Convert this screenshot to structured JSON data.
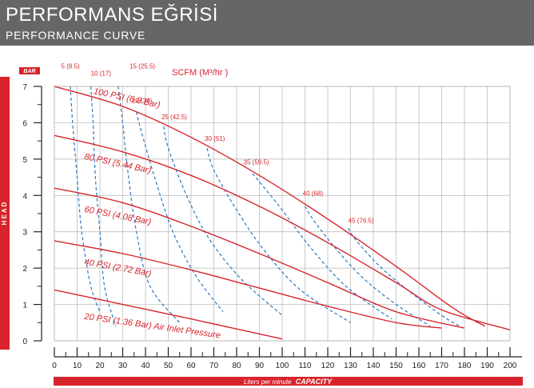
{
  "header": {
    "title": "PERFORMANS EĞRİSİ",
    "subtitle": "PERFORMANCE CURVE"
  },
  "colors": {
    "header_bg": "#666666",
    "accent_red": "#d7242c",
    "air_blue": "#2b78c2",
    "grid": "#b4b4b4"
  },
  "chart_data": {
    "type": "line",
    "y_unit_label": "BAR",
    "y_axis_label": "HEAD",
    "x_axis_label_prefix": "Liters per minute",
    "x_axis_label_bold": "CAPACITY",
    "xlim": [
      0,
      200
    ],
    "ylim": [
      0,
      7
    ],
    "x_ticks": [
      0,
      10,
      20,
      30,
      40,
      50,
      60,
      70,
      80,
      90,
      100,
      110,
      120,
      130,
      140,
      150,
      160,
      170,
      180,
      190,
      200
    ],
    "y_ticks": [
      0,
      1,
      2,
      3,
      4,
      5,
      6,
      7
    ],
    "grid": true,
    "air_pressure_curves": [
      {
        "label": "100 PSI (6.8 Bar)",
        "points": [
          [
            0,
            7.0
          ],
          [
            30,
            6.45
          ],
          [
            60,
            5.6
          ],
          [
            90,
            4.55
          ],
          [
            120,
            3.35
          ],
          [
            150,
            2.05
          ],
          [
            175,
            0.9
          ],
          [
            189,
            0.4
          ]
        ],
        "label_at": [
          17,
          6.8
        ],
        "label_rotate": 12
      },
      {
        "label": "80 PSI (5.44 Bar)",
        "points": [
          [
            0,
            5.65
          ],
          [
            30,
            5.2
          ],
          [
            60,
            4.55
          ],
          [
            90,
            3.7
          ],
          [
            120,
            2.7
          ],
          [
            150,
            1.6
          ],
          [
            170,
            0.85
          ],
          [
            200,
            0.3
          ]
        ],
        "label_at": [
          13,
          5.0
        ],
        "label_rotate": 12
      },
      {
        "label": "60 PSI (4.08 Bar)",
        "points": [
          [
            0,
            4.2
          ],
          [
            30,
            3.8
          ],
          [
            60,
            3.15
          ],
          [
            90,
            2.4
          ],
          [
            120,
            1.6
          ],
          [
            150,
            0.8
          ],
          [
            180,
            0.35
          ]
        ],
        "label_at": [
          13,
          3.55
        ],
        "label_rotate": 11
      },
      {
        "label": "40 PSI (2.72 Bar)",
        "points": [
          [
            0,
            2.75
          ],
          [
            30,
            2.4
          ],
          [
            60,
            1.95
          ],
          [
            90,
            1.45
          ],
          [
            120,
            0.95
          ],
          [
            150,
            0.5
          ],
          [
            170,
            0.35
          ]
        ],
        "label_at": [
          13,
          2.1
        ],
        "label_rotate": 10
      },
      {
        "label": "20 PSI (1.36 Bar) Air Inlet Pressure",
        "points": [
          [
            0,
            1.4
          ],
          [
            30,
            1.0
          ],
          [
            60,
            0.6
          ],
          [
            100,
            0.05
          ]
        ],
        "label_at": [
          13,
          0.6
        ],
        "label_rotate": 8
      }
    ],
    "scfm_label_title": "SCFM (M³/hr )",
    "scfm_curves": [
      {
        "label": "5 (8.5)",
        "points": [
          [
            7,
            7.0
          ],
          [
            8,
            6.0
          ],
          [
            10,
            4.5
          ],
          [
            12,
            3.0
          ],
          [
            16,
            1.5
          ],
          [
            20,
            0.8
          ]
        ],
        "label_at": [
          3,
          7.5
        ]
      },
      {
        "label": "10 (17)",
        "points": [
          [
            16,
            7.0
          ],
          [
            17,
            6.0
          ],
          [
            18,
            4.5
          ],
          [
            20,
            3.0
          ],
          [
            22,
            1.5
          ],
          [
            27,
            0.4
          ]
        ],
        "label_at": [
          16,
          7.3
        ]
      },
      {
        "label": "15 (25.5)",
        "points": [
          [
            28,
            7.0
          ],
          [
            30,
            6.0
          ],
          [
            32,
            4.8
          ],
          [
            36,
            3.0
          ],
          [
            42,
            1.5
          ],
          [
            55,
            0.5
          ]
        ],
        "label_at": [
          33,
          7.5
        ]
      },
      {
        "label": "20 (34)",
        "points": [
          [
            36,
            6.3
          ],
          [
            38,
            5.8
          ],
          [
            44,
            4.5
          ],
          [
            52,
            3.0
          ],
          [
            62,
            1.8
          ],
          [
            74,
            0.8
          ]
        ],
        "label_at": [
          34,
          6.55
        ]
      },
      {
        "label": "25 (42.5)",
        "points": [
          [
            48,
            5.9
          ],
          [
            50,
            5.3
          ],
          [
            58,
            4.0
          ],
          [
            68,
            2.8
          ],
          [
            82,
            1.7
          ],
          [
            100,
            0.7
          ]
        ],
        "label_at": [
          47,
          6.1
        ]
      },
      {
        "label": "30 (51)",
        "points": [
          [
            67,
            5.3
          ],
          [
            70,
            4.7
          ],
          [
            80,
            3.6
          ],
          [
            92,
            2.5
          ],
          [
            108,
            1.4
          ],
          [
            130,
            0.5
          ]
        ],
        "label_at": [
          66,
          5.5
        ]
      },
      {
        "label": "35 (59.5)",
        "points": [
          [
            87,
            4.6
          ],
          [
            91,
            4.3
          ],
          [
            100,
            3.6
          ],
          [
            112,
            2.6
          ],
          [
            128,
            1.5
          ],
          [
            148,
            0.6
          ]
        ],
        "label_at": [
          83,
          4.85
        ]
      },
      {
        "label": "40 (68)",
        "points": [
          [
            110,
            3.7
          ],
          [
            114,
            3.3
          ],
          [
            124,
            2.5
          ],
          [
            136,
            1.7
          ],
          [
            150,
            1.0
          ],
          [
            165,
            0.4
          ]
        ],
        "label_at": [
          109,
          4.0
        ]
      },
      {
        "label": "45 (76.5)",
        "points": [
          [
            129,
            3.1
          ],
          [
            132,
            2.8
          ],
          [
            142,
            2.1
          ],
          [
            155,
            1.4
          ],
          [
            170,
            0.7
          ],
          [
            178,
            0.4
          ]
        ],
        "label_at": [
          129,
          3.25
        ]
      }
    ]
  }
}
